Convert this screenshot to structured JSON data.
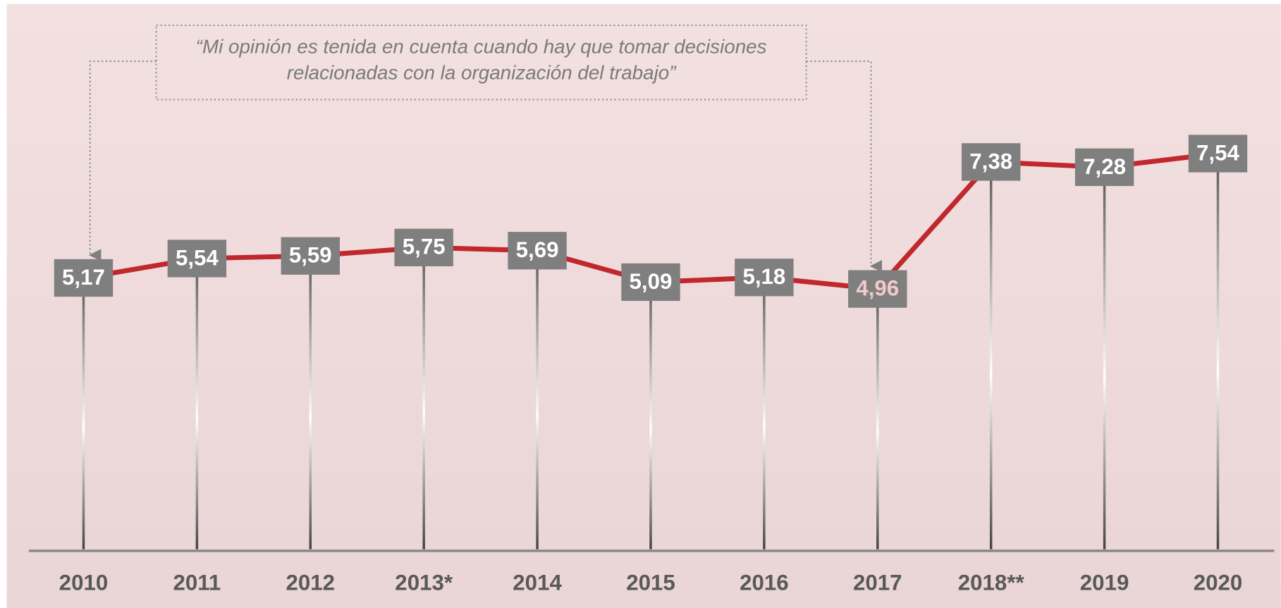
{
  "chart_data": {
    "type": "line",
    "annotation": "“Mi opinión es tenida en cuenta cuando hay que tomar decisiones relacionadas con la organización del trabajo”",
    "categories": [
      "2010",
      "2011",
      "2012",
      "2013*",
      "2014",
      "2015",
      "2016",
      "2017",
      "2018**",
      "2019",
      "2020"
    ],
    "series": [
      {
        "color": "#c0282e",
        "values": [
          5.17,
          5.54,
          5.59,
          5.75,
          5.69,
          5.09,
          5.18,
          4.96,
          7.38,
          7.28,
          7.54
        ],
        "value_labels": [
          "5,17",
          "5,54",
          "5,59",
          "5,75",
          "5,69",
          "5,09",
          "5,18",
          "4,96",
          "7,38",
          "7,28",
          "7,54"
        ],
        "value_label_colors": [
          "#ffffff",
          "#ffffff",
          "#ffffff",
          "#ffffff",
          "#ffffff",
          "#ffffff",
          "#ffffff",
          "#f4c9c9",
          "#ffffff",
          "#ffffff",
          "#ffffff"
        ]
      }
    ],
    "ylim": [
      0,
      10
    ]
  }
}
